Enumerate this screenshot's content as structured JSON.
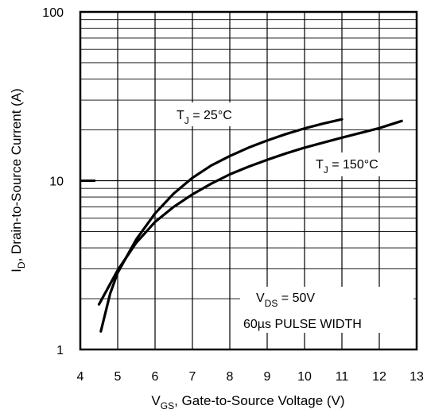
{
  "chart_data": {
    "type": "line",
    "title": "",
    "xlabel": {
      "main": "V",
      "sub": "GS",
      "rest": ", Gate-to-Source Voltage (V)"
    },
    "ylabel": {
      "main": "I",
      "sub": "D",
      "rest": ", Drain-to-Source Current (A)"
    },
    "xlim": [
      4,
      13
    ],
    "ylim": [
      1,
      100
    ],
    "yscale": "log",
    "grid": true,
    "x_ticks": [
      "4",
      "5",
      "6",
      "7",
      "8",
      "9",
      "10",
      "11",
      "12",
      "13"
    ],
    "y_ticks": [
      "1",
      "10",
      "100"
    ],
    "series": [
      {
        "name": {
          "main": "T",
          "sub": "J",
          "rest": " =  25°C"
        },
        "x": [
          4.55,
          4.8,
          5.0,
          5.5,
          6.0,
          6.5,
          7.0,
          7.5,
          8.0,
          8.5,
          9.0,
          9.5,
          10.0,
          10.5,
          11.0
        ],
        "y": [
          1.28,
          2.15,
          2.85,
          4.5,
          6.4,
          8.4,
          10.4,
          12.3,
          14.0,
          15.7,
          17.3,
          18.9,
          20.4,
          21.8,
          23.1
        ]
      },
      {
        "name": {
          "main": "T",
          "sub": "J",
          "rest": " = 150°C"
        },
        "x": [
          4.5,
          5.0,
          5.5,
          6.0,
          6.5,
          7.0,
          7.5,
          8.0,
          8.5,
          9.0,
          9.5,
          10.0,
          10.5,
          11.0,
          11.5,
          12.0,
          12.6
        ],
        "y": [
          1.85,
          2.95,
          4.3,
          5.7,
          7.0,
          8.3,
          9.6,
          10.9,
          12.1,
          13.3,
          14.5,
          15.7,
          16.8,
          18.0,
          19.2,
          20.5,
          22.6
        ]
      }
    ],
    "annotations": [
      {
        "main": "V",
        "sub": "DS",
        "rest": " = 50V"
      },
      {
        "text": "60µs PULSE  WIDTH"
      }
    ]
  }
}
